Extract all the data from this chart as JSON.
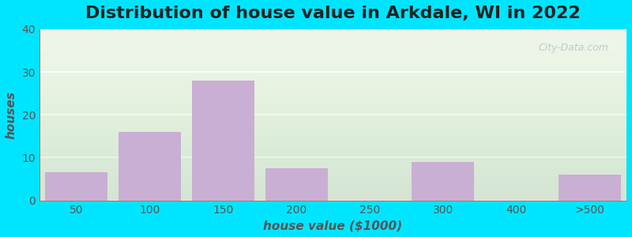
{
  "title": "Distribution of house value in Arkdale, WI in 2022",
  "xlabel": "house value ($1000)",
  "ylabel": "houses",
  "categories": [
    "50",
    "100",
    "150",
    "200",
    "250",
    "300",
    "400",
    ">500"
  ],
  "values": [
    6.5,
    16,
    28,
    7.5,
    0,
    9,
    0,
    6
  ],
  "bar_color": "#c9afd4",
  "bar_color_empty": "#e8f0d8",
  "ylim": [
    0,
    40
  ],
  "yticks": [
    0,
    10,
    20,
    30,
    40
  ],
  "grid_color": "#ffffff",
  "bg_color": "#eef5e8",
  "outer_bg": "#00e5ff",
  "title_fontsize": 16,
  "axis_fontsize": 11,
  "tick_fontsize": 10
}
